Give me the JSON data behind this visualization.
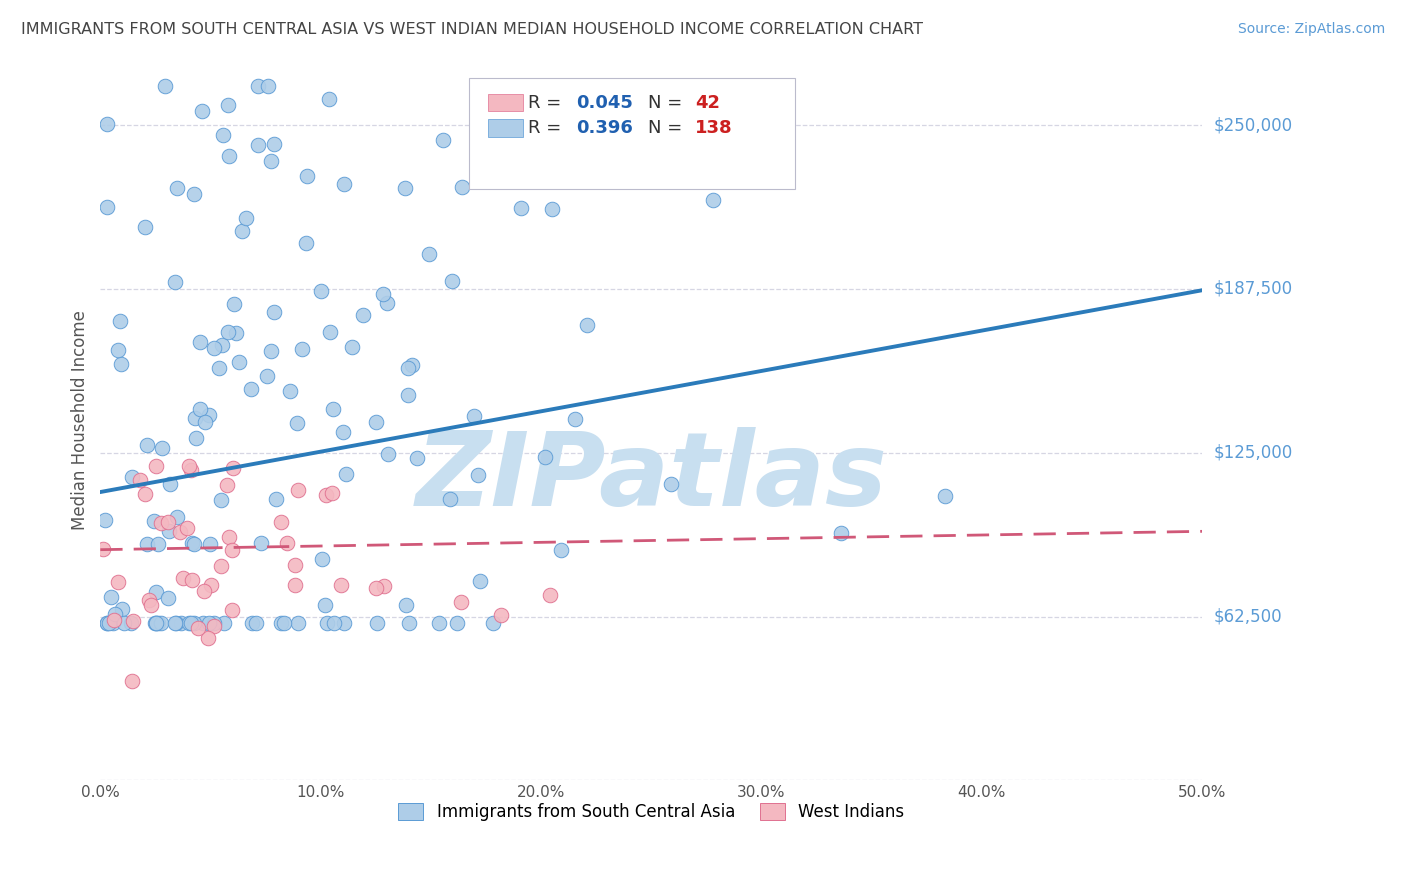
{
  "title": "IMMIGRANTS FROM SOUTH CENTRAL ASIA VS WEST INDIAN MEDIAN HOUSEHOLD INCOME CORRELATION CHART",
  "source": "Source: ZipAtlas.com",
  "ylabel": "Median Household Income",
  "xlim": [
    0.0,
    0.5
  ],
  "ylim": [
    0,
    275000
  ],
  "yticks": [
    0,
    62500,
    125000,
    187500,
    250000
  ],
  "ytick_labels": [
    "",
    "$62,500",
    "$125,000",
    "$187,500",
    "$250,000"
  ],
  "xticks": [
    0.0,
    0.1,
    0.2,
    0.3,
    0.4,
    0.5
  ],
  "xtick_labels": [
    "0.0%",
    "10.0%",
    "20.0%",
    "30.0%",
    "40.0%",
    "50.0%"
  ],
  "blue_R": 0.396,
  "blue_N": 138,
  "pink_R": 0.045,
  "pink_N": 42,
  "blue_color": "#aecde8",
  "blue_edge_color": "#5b9bd5",
  "blue_line_color": "#2b7bba",
  "pink_color": "#f4b8c1",
  "pink_edge_color": "#e07090",
  "pink_line_color": "#d05878",
  "watermark": "ZIPatlas",
  "watermark_color": "#c8dff0",
  "background_color": "#ffffff",
  "grid_color": "#ccccdd",
  "title_color": "#444444",
  "axis_label_color": "#5b9bd5",
  "ytick_label_color": "#5b9bd5",
  "legend_R_color": "#2060b0",
  "legend_N_color": "#cc2020",
  "blue_trend_intercept": 110000,
  "blue_trend_slope": 160000,
  "pink_trend_intercept": 88000,
  "pink_trend_slope": 8000
}
